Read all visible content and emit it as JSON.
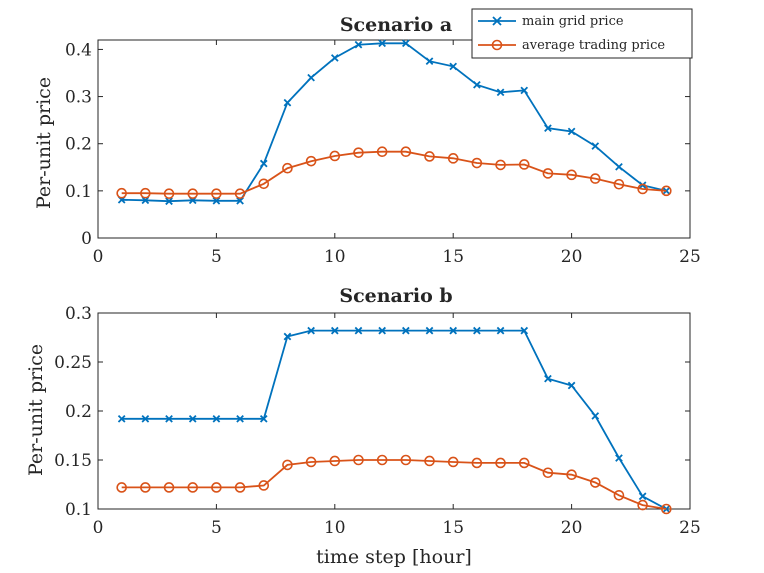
{
  "chart_data": [
    {
      "type": "line",
      "title": "Scenario a",
      "xlabel": "",
      "ylabel": "Per-unit price",
      "xlim": [
        0,
        25
      ],
      "ylim": [
        0,
        0.42
      ],
      "xticks": [
        0,
        5,
        10,
        15,
        20,
        25
      ],
      "xtick_labels": [
        "0",
        "5",
        "10",
        "15",
        "20",
        "25"
      ],
      "yticks": [
        0,
        0.1,
        0.2,
        0.3,
        0.4
      ],
      "ytick_labels": [
        "0",
        "0.1",
        "0.2",
        "0.3",
        "0.4"
      ],
      "grid": false,
      "legend_position": "top-right, outside",
      "x": [
        1,
        2,
        3,
        4,
        5,
        6,
        7,
        8,
        9,
        10,
        11,
        12,
        13,
        14,
        15,
        16,
        17,
        18,
        19,
        20,
        21,
        22,
        23,
        24
      ],
      "series": [
        {
          "name": "main grid price",
          "color": "#0072BD",
          "marker": "x",
          "values": [
            0.081,
            0.08,
            0.078,
            0.08,
            0.079,
            0.079,
            0.158,
            0.287,
            0.34,
            0.382,
            0.41,
            0.413,
            0.413,
            0.375,
            0.364,
            0.325,
            0.309,
            0.313,
            0.233,
            0.226,
            0.195,
            0.151,
            0.112,
            0.1
          ]
        },
        {
          "name": "average trading price",
          "color": "#D95319",
          "marker": "o",
          "values": [
            0.095,
            0.095,
            0.094,
            0.094,
            0.094,
            0.094,
            0.115,
            0.148,
            0.163,
            0.174,
            0.181,
            0.183,
            0.183,
            0.173,
            0.169,
            0.159,
            0.155,
            0.156,
            0.137,
            0.134,
            0.126,
            0.114,
            0.104,
            0.1
          ]
        }
      ]
    },
    {
      "type": "line",
      "title": "Scenario b",
      "xlabel": "time step [hour]",
      "ylabel": "Per-unit price",
      "xlim": [
        0,
        25
      ],
      "ylim": [
        0.1,
        0.3
      ],
      "xticks": [
        0,
        5,
        10,
        15,
        20,
        25
      ],
      "xtick_labels": [
        "0",
        "5",
        "10",
        "15",
        "20",
        "25"
      ],
      "yticks": [
        0.1,
        0.15,
        0.2,
        0.25,
        0.3
      ],
      "ytick_labels": [
        "0.1",
        "0.15",
        "0.2",
        "0.25",
        "0.3"
      ],
      "grid": false,
      "legend_position": "none",
      "x": [
        1,
        2,
        3,
        4,
        5,
        6,
        7,
        8,
        9,
        10,
        11,
        12,
        13,
        14,
        15,
        16,
        17,
        18,
        19,
        20,
        21,
        22,
        23,
        24
      ],
      "series": [
        {
          "name": "main grid price",
          "color": "#0072BD",
          "marker": "x",
          "values": [
            0.192,
            0.192,
            0.192,
            0.192,
            0.192,
            0.192,
            0.192,
            0.276,
            0.282,
            0.282,
            0.282,
            0.282,
            0.282,
            0.282,
            0.282,
            0.282,
            0.282,
            0.282,
            0.233,
            0.226,
            0.195,
            0.152,
            0.113,
            0.1
          ]
        },
        {
          "name": "average trading price",
          "color": "#D95319",
          "marker": "o",
          "values": [
            0.122,
            0.122,
            0.122,
            0.122,
            0.122,
            0.122,
            0.124,
            0.145,
            0.148,
            0.149,
            0.15,
            0.15,
            0.15,
            0.149,
            0.148,
            0.147,
            0.147,
            0.147,
            0.137,
            0.135,
            0.127,
            0.114,
            0.104,
            0.1
          ]
        }
      ]
    }
  ]
}
